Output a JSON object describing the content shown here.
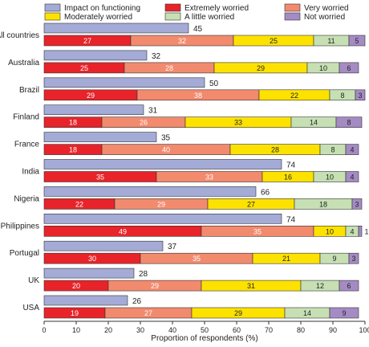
{
  "chart_data": {
    "type": "bar",
    "orientation": "horizontal",
    "xlabel": "Proportion of respondents (%)",
    "xlim": [
      0,
      100
    ],
    "xticks": [
      "0",
      "10",
      "20",
      "30",
      "40",
      "50",
      "60",
      "70",
      "80",
      "90",
      "100"
    ],
    "grid": false,
    "legend_position": "top",
    "categories": [
      "All countries",
      "Australia",
      "Brazil",
      "Finland",
      "France",
      "India",
      "Nigeria",
      "Philippines",
      "Portugal",
      "UK",
      "USA"
    ],
    "impact": {
      "name": "Impact on functioning",
      "color": "#a4abd6",
      "values": [
        45,
        32,
        50,
        31,
        35,
        74,
        66,
        74,
        37,
        28,
        26
      ]
    },
    "series": [
      {
        "name": "Extremely worried",
        "color": "#e8232a",
        "label_color": "#ffffff",
        "values": [
          27,
          25,
          29,
          18,
          18,
          35,
          22,
          49,
          30,
          20,
          19
        ]
      },
      {
        "name": "Very worried",
        "color": "#f28a6e",
        "label_color": "#ffffff",
        "values": [
          32,
          28,
          38,
          26,
          40,
          33,
          29,
          35,
          35,
          29,
          27
        ]
      },
      {
        "name": "Moderately worried",
        "color": "#fde200",
        "label_color": "#222222",
        "values": [
          25,
          29,
          22,
          33,
          28,
          16,
          27,
          10,
          21,
          31,
          29
        ]
      },
      {
        "name": "A little worried",
        "color": "#c6e0b4",
        "label_color": "#222222",
        "values": [
          11,
          10,
          8,
          14,
          8,
          10,
          18,
          4,
          9,
          12,
          14
        ]
      },
      {
        "name": "Not worried",
        "color": "#a58bc4",
        "label_color": "#222222",
        "values": [
          5,
          6,
          3,
          8,
          4,
          4,
          3,
          1,
          3,
          6,
          9
        ]
      }
    ]
  }
}
